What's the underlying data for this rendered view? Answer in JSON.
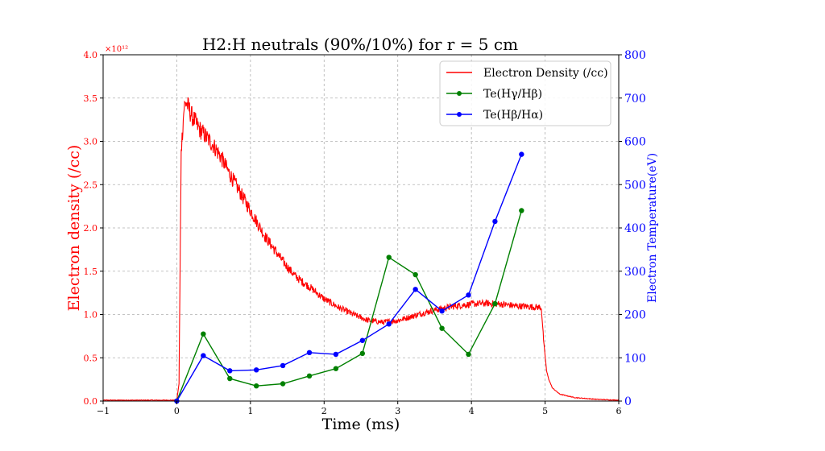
{
  "chart_data": {
    "type": "line",
    "title": "H2:H neutrals (90%/10%) for r = 5 cm",
    "xlabel": "Time (ms)",
    "ylabel_left": "Electron density (/cc)",
    "ylabel_right": "Electron Temperature(eV)",
    "left_axis_offset_text": "×10¹²",
    "xlim": [
      -1,
      6
    ],
    "ylim_left": [
      0,
      4.0
    ],
    "ylim_right": [
      0,
      800
    ],
    "x_ticks": [
      "−1",
      "0",
      "1",
      "2",
      "3",
      "4",
      "5",
      "6"
    ],
    "y_left_ticks": [
      "0.0",
      "0.5",
      "1.0",
      "1.5",
      "2.0",
      "2.5",
      "3.0",
      "3.5",
      "4.0"
    ],
    "y_right_ticks": [
      "0",
      "100",
      "200",
      "300",
      "400",
      "500",
      "600",
      "700",
      "800"
    ],
    "grid": true,
    "legend_position": "top-right",
    "colors": {
      "density": "#ff0000",
      "te_gb": "#008000",
      "te_ba": "#0000ff"
    },
    "series": [
      {
        "name": "Electron Density (/cc)",
        "axis": "left",
        "style": "noisy-line",
        "x": [
          -1.0,
          -0.5,
          -0.1,
          0.0,
          0.03,
          0.06,
          0.1,
          0.13,
          0.2,
          0.3,
          0.4,
          0.5,
          0.6,
          0.7,
          0.8,
          0.9,
          1.0,
          1.1,
          1.2,
          1.3,
          1.4,
          1.5,
          1.6,
          1.7,
          1.8,
          1.9,
          2.0,
          2.2,
          2.4,
          2.6,
          2.8,
          3.0,
          3.2,
          3.4,
          3.6,
          3.8,
          4.0,
          4.2,
          4.4,
          4.6,
          4.8,
          4.95,
          4.98,
          5.02,
          5.05,
          5.1,
          5.2,
          5.4,
          5.7,
          6.0
        ],
        "values": [
          0.01,
          0.01,
          0.01,
          0.01,
          0.2,
          2.9,
          3.4,
          3.45,
          3.3,
          3.15,
          3.05,
          2.95,
          2.82,
          2.65,
          2.5,
          2.35,
          2.2,
          2.05,
          1.9,
          1.78,
          1.66,
          1.55,
          1.45,
          1.38,
          1.32,
          1.25,
          1.18,
          1.08,
          1.0,
          0.93,
          0.91,
          0.93,
          0.98,
          1.03,
          1.07,
          1.1,
          1.12,
          1.13,
          1.12,
          1.1,
          1.09,
          1.08,
          0.7,
          0.35,
          0.25,
          0.15,
          0.08,
          0.04,
          0.02,
          0.01
        ]
      },
      {
        "name": "Te(Hγ/Hβ)",
        "axis": "right",
        "style": "line-markers",
        "x": [
          0.0,
          0.36,
          0.72,
          1.08,
          1.44,
          1.8,
          2.16,
          2.52,
          2.88,
          3.24,
          3.6,
          3.96,
          4.32,
          4.68
        ],
        "values": [
          0,
          155,
          52,
          35,
          40,
          58,
          75,
          110,
          332,
          292,
          168,
          108,
          225,
          440
        ]
      },
      {
        "name": "Te(Hβ/Hα)",
        "axis": "right",
        "style": "line-markers",
        "x": [
          0.0,
          0.36,
          0.72,
          1.08,
          1.44,
          1.8,
          2.16,
          2.52,
          2.88,
          3.24,
          3.6,
          3.96,
          4.32,
          4.68
        ],
        "values": [
          0,
          105,
          70,
          72,
          82,
          112,
          108,
          140,
          178,
          258,
          208,
          245,
          415,
          570
        ]
      }
    ]
  }
}
